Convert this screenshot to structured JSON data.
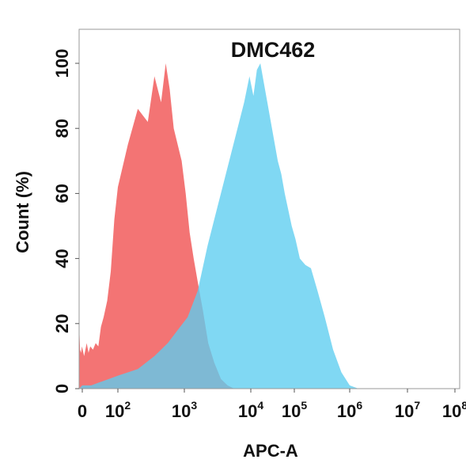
{
  "chart_data": {
    "type": "area",
    "title": "DMC462",
    "xlabel": "APC-A",
    "ylabel": "Count  (%)",
    "x_scale": "biexponential-log",
    "xlim_log10": [
      0,
      8
    ],
    "ylim": [
      0,
      100
    ],
    "y_ticks": [
      0,
      20,
      40,
      60,
      80,
      100
    ],
    "x_ticks": [
      {
        "base": "0",
        "exp": ""
      },
      {
        "base": "10",
        "exp": "2"
      },
      {
        "base": "10",
        "exp": "3"
      },
      {
        "base": "10",
        "exp": "4"
      },
      {
        "base": "10",
        "exp": "5"
      },
      {
        "base": "10",
        "exp": "6"
      },
      {
        "base": "10",
        "exp": "7"
      },
      {
        "base": "10",
        "exp": "8"
      }
    ],
    "grid": false,
    "series": [
      {
        "color": "#f26d6d",
        "opacity": 0.95,
        "log10_x": [
          -0.5,
          -0.35,
          -0.2,
          -0.05,
          0.1,
          0.25,
          0.35,
          0.45,
          0.6,
          0.75,
          0.9,
          1.05,
          1.2,
          1.4,
          1.6,
          1.8,
          2.0,
          2.15,
          2.3,
          2.45,
          2.55,
          2.65,
          2.72,
          2.78,
          2.84,
          2.9,
          2.96,
          3.02,
          3.08,
          3.14,
          3.2,
          3.28,
          3.36,
          3.45,
          3.55,
          3.65,
          3.75
        ],
        "y": [
          20,
          12,
          11,
          13,
          10,
          14,
          11,
          13,
          12,
          14,
          13,
          19,
          22,
          27,
          36,
          52,
          62,
          75,
          86,
          82,
          96,
          88,
          100,
          92,
          80,
          75,
          70,
          60,
          48,
          40,
          33,
          24,
          14,
          8,
          3,
          1,
          0
        ]
      },
      {
        "color": "#5ccdef",
        "opacity": 0.78,
        "log10_x": [
          -0.5,
          0.0,
          0.5,
          1.0,
          1.5,
          2.0,
          2.3,
          2.55,
          2.75,
          2.9,
          3.05,
          3.2,
          3.35,
          3.5,
          3.6,
          3.7,
          3.8,
          3.9,
          3.98,
          4.06,
          4.14,
          4.22,
          4.3,
          4.38,
          4.46,
          4.54,
          4.62,
          4.7,
          4.78,
          4.86,
          4.94,
          5.02,
          5.1,
          5.2,
          5.3,
          5.42,
          5.55,
          5.7,
          5.85,
          6.0,
          6.15
        ],
        "y": [
          0,
          1,
          1,
          2,
          3,
          4,
          6,
          10,
          14,
          18,
          22,
          30,
          44,
          56,
          64,
          72,
          80,
          88,
          96,
          90,
          98,
          100,
          94,
          88,
          82,
          76,
          70,
          66,
          60,
          55,
          50,
          46,
          40,
          38,
          37,
          30,
          22,
          12,
          5,
          1,
          0
        ]
      }
    ]
  }
}
